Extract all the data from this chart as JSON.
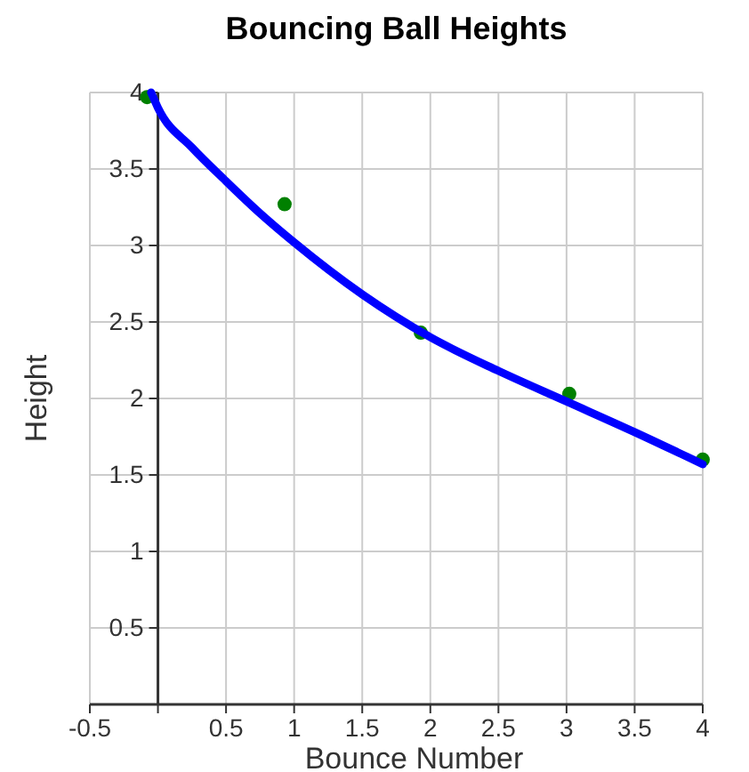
{
  "chart_data": {
    "type": "scatter",
    "title": "Bouncing Ball Heights",
    "xlabel": "Bounce Number",
    "ylabel": "Height",
    "xlim": [
      -0.5,
      4
    ],
    "ylim": [
      0,
      4
    ],
    "xticks": [
      -0.5,
      {
        "value": 0,
        "label": null
      },
      0.5,
      1,
      1.5,
      2,
      2.5,
      3,
      3.5,
      4
    ],
    "yticks": [
      0.5,
      1,
      1.5,
      2,
      2.5,
      3,
      3.5,
      4
    ],
    "grid": true,
    "marker": "circle",
    "series": [
      {
        "color": "#008000",
        "x": [
          -0.08,
          0.93,
          1.93,
          3.02,
          4.0
        ],
        "values": [
          3.97,
          3.27,
          2.43,
          2.03,
          1.6
        ]
      },
      {
        "type": "line",
        "color": "#0000ff",
        "line_style": "solid",
        "marker": "none",
        "x": [
          -0.05,
          0,
          0.25,
          0.5,
          0.75,
          1,
          1.5,
          2,
          2.5,
          3,
          3.5,
          4
        ],
        "values": [
          4.0,
          3.9,
          3.64,
          3.42,
          3.21,
          3.02,
          2.68,
          2.4,
          2.18,
          1.98,
          1.78,
          1.57
        ]
      }
    ]
  }
}
